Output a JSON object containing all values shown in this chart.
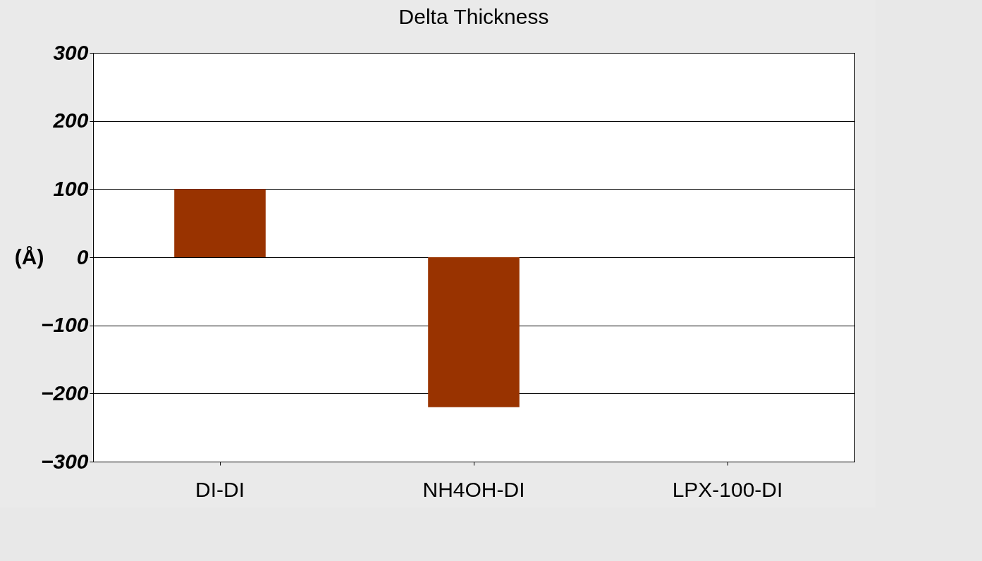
{
  "chart_data": {
    "type": "bar",
    "title": "Delta Thickness",
    "ylabel": "(Å)",
    "categories": [
      "DI-DI",
      "NH4OH-DI",
      "LPX-100-DI"
    ],
    "values": [
      100,
      -220,
      0
    ],
    "color": "#993300",
    "ylim": [
      -300,
      300
    ],
    "yticks": [
      -300,
      -200,
      -100,
      0,
      100,
      200,
      300
    ],
    "grid": "y"
  }
}
